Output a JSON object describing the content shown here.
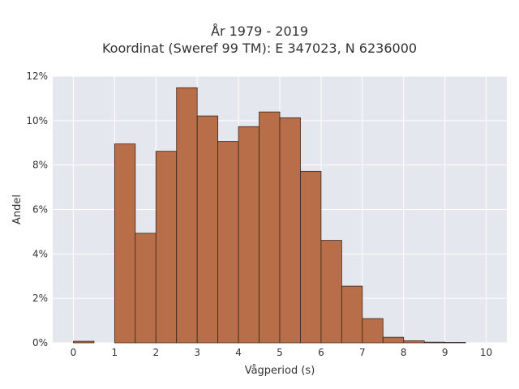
{
  "chart_data": {
    "type": "bar",
    "title_lines": [
      "År 1979 - 2019",
      "Koordinat (Sweref 99 TM): E 347023, N 6236000"
    ],
    "xlabel": "Vågperiod (s)",
    "ylabel": "Andel",
    "xlim": [
      -0.5,
      10.5
    ],
    "ylim": [
      0,
      0.12
    ],
    "x_ticks": [
      "0",
      "1",
      "2",
      "3",
      "4",
      "5",
      "6",
      "7",
      "8",
      "9",
      "10"
    ],
    "y_ticks": [
      "0%",
      "2%",
      "4%",
      "6%",
      "8%",
      "10%",
      "12%"
    ],
    "bin_width": 0.5,
    "bins": [
      {
        "x0": 0.0,
        "value": 0.0007
      },
      {
        "x0": 0.5,
        "value": 0.0
      },
      {
        "x0": 1.0,
        "value": 0.0895
      },
      {
        "x0": 1.5,
        "value": 0.0493
      },
      {
        "x0": 2.0,
        "value": 0.0862
      },
      {
        "x0": 2.5,
        "value": 0.1148
      },
      {
        "x0": 3.0,
        "value": 0.1021
      },
      {
        "x0": 3.5,
        "value": 0.0906
      },
      {
        "x0": 4.0,
        "value": 0.0973
      },
      {
        "x0": 4.5,
        "value": 0.1039
      },
      {
        "x0": 5.0,
        "value": 0.1013
      },
      {
        "x0": 5.5,
        "value": 0.0772
      },
      {
        "x0": 6.0,
        "value": 0.0461
      },
      {
        "x0": 6.5,
        "value": 0.0255
      },
      {
        "x0": 7.0,
        "value": 0.0109
      },
      {
        "x0": 7.5,
        "value": 0.0025
      },
      {
        "x0": 8.0,
        "value": 0.0009
      },
      {
        "x0": 8.5,
        "value": 0.0003
      },
      {
        "x0": 9.0,
        "value": 0.0002
      }
    ],
    "grid": true,
    "colors": {
      "bar_fill": "#b86e48",
      "bar_edge": "#3a2418",
      "plot_bg": "#e5e7ef",
      "grid": "#ffffff"
    }
  }
}
